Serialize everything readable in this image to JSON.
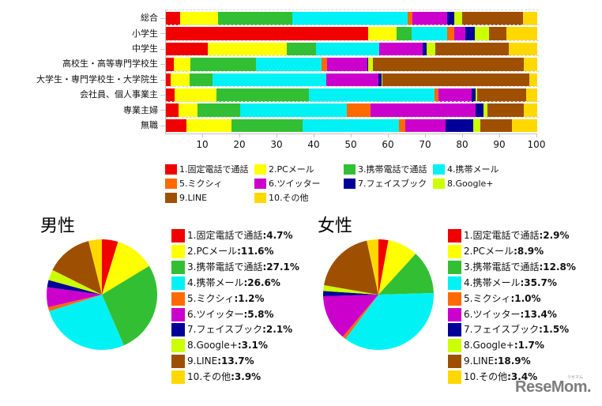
{
  "chart_data": [
    {
      "type": "bar",
      "orientation": "horizontal",
      "stacked": true,
      "title": "",
      "xlabel": "",
      "ylabel": "",
      "xlim": [
        0,
        100
      ],
      "xticks": [
        10,
        20,
        30,
        40,
        50,
        60,
        70,
        80,
        90,
        100
      ],
      "grid": "dashed horizontal separators",
      "legend_position": "bottom",
      "categories": [
        "総合",
        "小学生",
        "中学生",
        "高校生・高等専門学校生",
        "大学生・専門学校生・大学院生",
        "会社員、個人事業主",
        "専業主婦",
        "無職"
      ],
      "series": [
        {
          "name": "1.固定電話で通話",
          "color": "#f00000",
          "values": [
            3.8,
            54.5,
            11.2,
            2.2,
            1.3,
            2.3,
            3.4,
            5.5
          ]
        },
        {
          "name": "2.PCメール",
          "color": "#ffff00",
          "values": [
            10.3,
            7.6,
            21.4,
            4.4,
            5.1,
            11.4,
            5.1,
            12.2
          ]
        },
        {
          "name": "3.携帯電話で通話",
          "color": "#33bf33",
          "values": [
            20.0,
            4.1,
            7.8,
            17.7,
            6.2,
            24.8,
            11.6,
            19.2
          ]
        },
        {
          "name": "4.携帯メール",
          "color": "#00f2f5",
          "values": [
            31.0,
            9.5,
            17.0,
            17.6,
            30.7,
            33.8,
            28.7,
            25.9
          ]
        },
        {
          "name": "5.ミクシィ",
          "color": "#ff6a00",
          "values": [
            1.2,
            2.0,
            0.0,
            1.6,
            0.0,
            1.2,
            6.4,
            1.6
          ]
        },
        {
          "name": "6.ツイッター",
          "color": "#cc00cc",
          "values": [
            9.4,
            3.0,
            11.7,
            10.8,
            13.9,
            8.8,
            28.2,
            10.9
          ]
        },
        {
          "name": "7.フェイスブック",
          "color": "#000099",
          "values": [
            1.9,
            2.5,
            1.2,
            0.2,
            0.8,
            1.2,
            2.1,
            7.5
          ]
        },
        {
          "name": "8.Google+",
          "color": "#ccff00",
          "values": [
            2.3,
            3.9,
            2.3,
            1.2,
            0.4,
            0.4,
            1.1,
            1.9
          ]
        },
        {
          "name": "9.LINE",
          "color": "#9e5000",
          "values": [
            16.3,
            4.6,
            19.8,
            40.7,
            39.5,
            13.1,
            9.7,
            8.4
          ]
        },
        {
          "name": "10.その他",
          "color": "#ffd800",
          "values": [
            3.8,
            8.3,
            7.6,
            3.6,
            2.1,
            3.0,
            3.7,
            6.9
          ]
        }
      ]
    },
    {
      "type": "pie",
      "title": "男性",
      "legend_position": "right",
      "separator": ":",
      "labels": [
        "1.固定電話で通話",
        "2.PCメール",
        "3.携帯電話で通話",
        "4.携帯メール",
        "5.ミクシィ",
        "6.ツイッター",
        "7.フェイスブック",
        "8.Google+",
        "9.LINE",
        "10.その他"
      ],
      "colors": [
        "#f00000",
        "#ffff00",
        "#33bf33",
        "#00f2f5",
        "#ff6a00",
        "#cc00cc",
        "#000099",
        "#ccff00",
        "#9e5000",
        "#ffd800"
      ],
      "values": [
        4.7,
        11.6,
        27.1,
        26.6,
        1.2,
        5.8,
        2.1,
        3.1,
        13.7,
        3.9
      ],
      "value_labels": [
        "4.7%",
        "11.6%",
        "27.1%",
        "26.6%",
        "1.2%",
        "5.8%",
        "2.1%",
        "3.1%",
        "13.7%",
        "3.9%"
      ]
    },
    {
      "type": "pie",
      "title": "女性",
      "legend_position": "right",
      "separator": ":",
      "labels": [
        "1.固定電話で通話",
        "2.PCメール",
        "3.携帯電話で通話",
        "4.携帯メール",
        "5.ミクシィ",
        "6.ツイッター",
        "7.フェイスブック",
        "8.Google+",
        "9.LINE",
        "10.その他"
      ],
      "colors": [
        "#f00000",
        "#ffff00",
        "#33bf33",
        "#00f2f5",
        "#ff6a00",
        "#cc00cc",
        "#000099",
        "#ccff00",
        "#9e5000",
        "#ffd800"
      ],
      "values": [
        2.9,
        8.9,
        12.8,
        35.7,
        1.0,
        13.4,
        1.5,
        1.7,
        18.9,
        3.4
      ],
      "value_labels": [
        "2.9%",
        "8.9%",
        "12.8%",
        "35.7%",
        "1.0%",
        "13.4%",
        "1.5%",
        "1.7%",
        "18.9%",
        "3.4%"
      ]
    }
  ],
  "watermark": {
    "text": "ReseMom.",
    "ruby": "リセマム"
  }
}
